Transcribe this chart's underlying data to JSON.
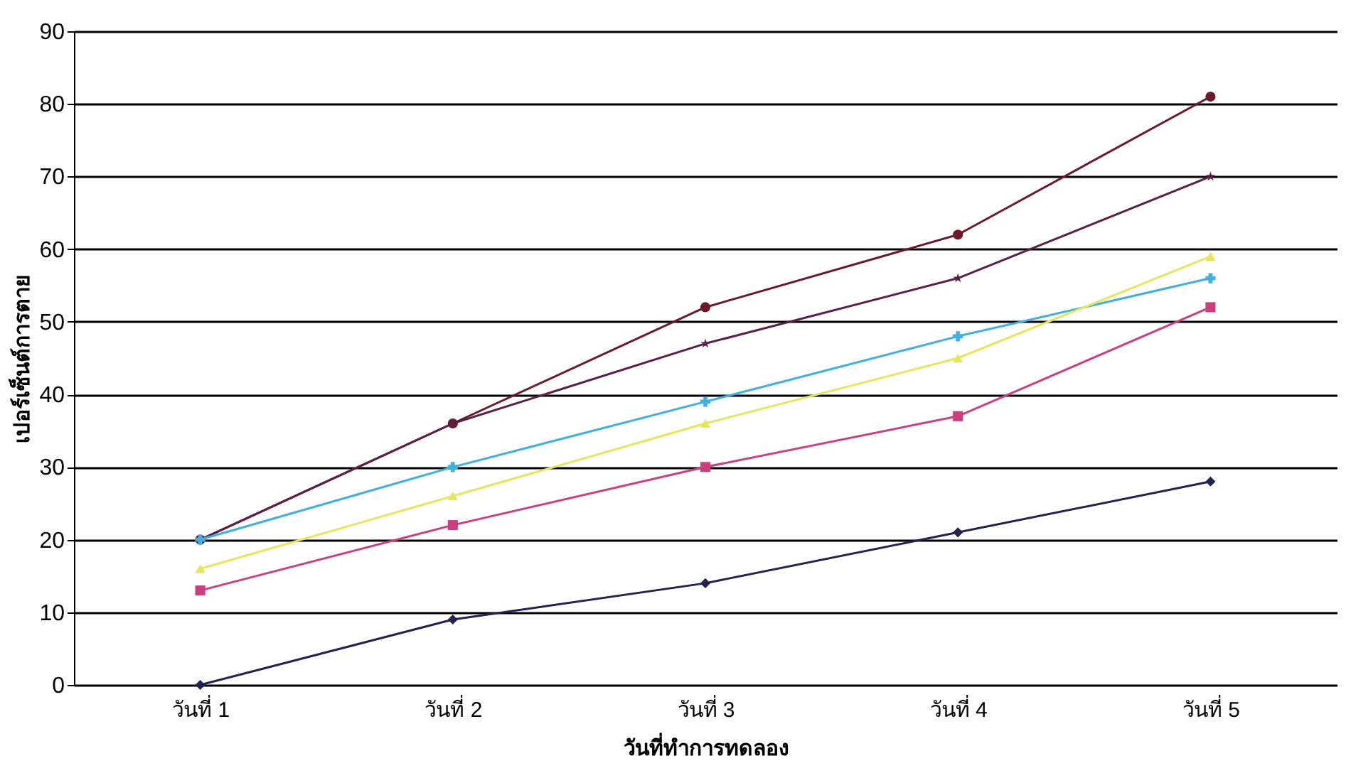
{
  "chart_data": {
    "type": "line",
    "xlabel": "วันที่ทำการทดลอง",
    "ylabel": "เปอร์เซ็นต์การตาย",
    "categories": [
      "วันที่ 1",
      "วันที่ 2",
      "วันที่ 3",
      "วันที่ 4",
      "วันที่ 5"
    ],
    "ylim": [
      0,
      90
    ],
    "yticks": [
      0,
      10,
      20,
      30,
      40,
      50,
      60,
      70,
      80,
      90
    ],
    "grid": "y",
    "line_style": "solid",
    "series": [
      {
        "color": "#23234f",
        "marker": "diamond",
        "values": [
          0,
          9,
          14,
          21,
          28
        ]
      },
      {
        "color": "#cc3f7f",
        "marker": "square",
        "values": [
          13,
          22,
          30,
          37,
          52
        ]
      },
      {
        "color": "#e6e65a",
        "marker": "triangle",
        "values": [
          16,
          26,
          36,
          45,
          59
        ]
      },
      {
        "color": "#3fb0e0",
        "marker": "cross",
        "values": [
          20,
          30,
          39,
          48,
          56
        ]
      },
      {
        "color": "#5a2048",
        "marker": "star",
        "values": [
          20,
          36,
          47,
          56,
          70
        ]
      },
      {
        "color": "#6b1a2a",
        "marker": "circle",
        "values": [
          20,
          36,
          52,
          62,
          81
        ]
      }
    ]
  }
}
